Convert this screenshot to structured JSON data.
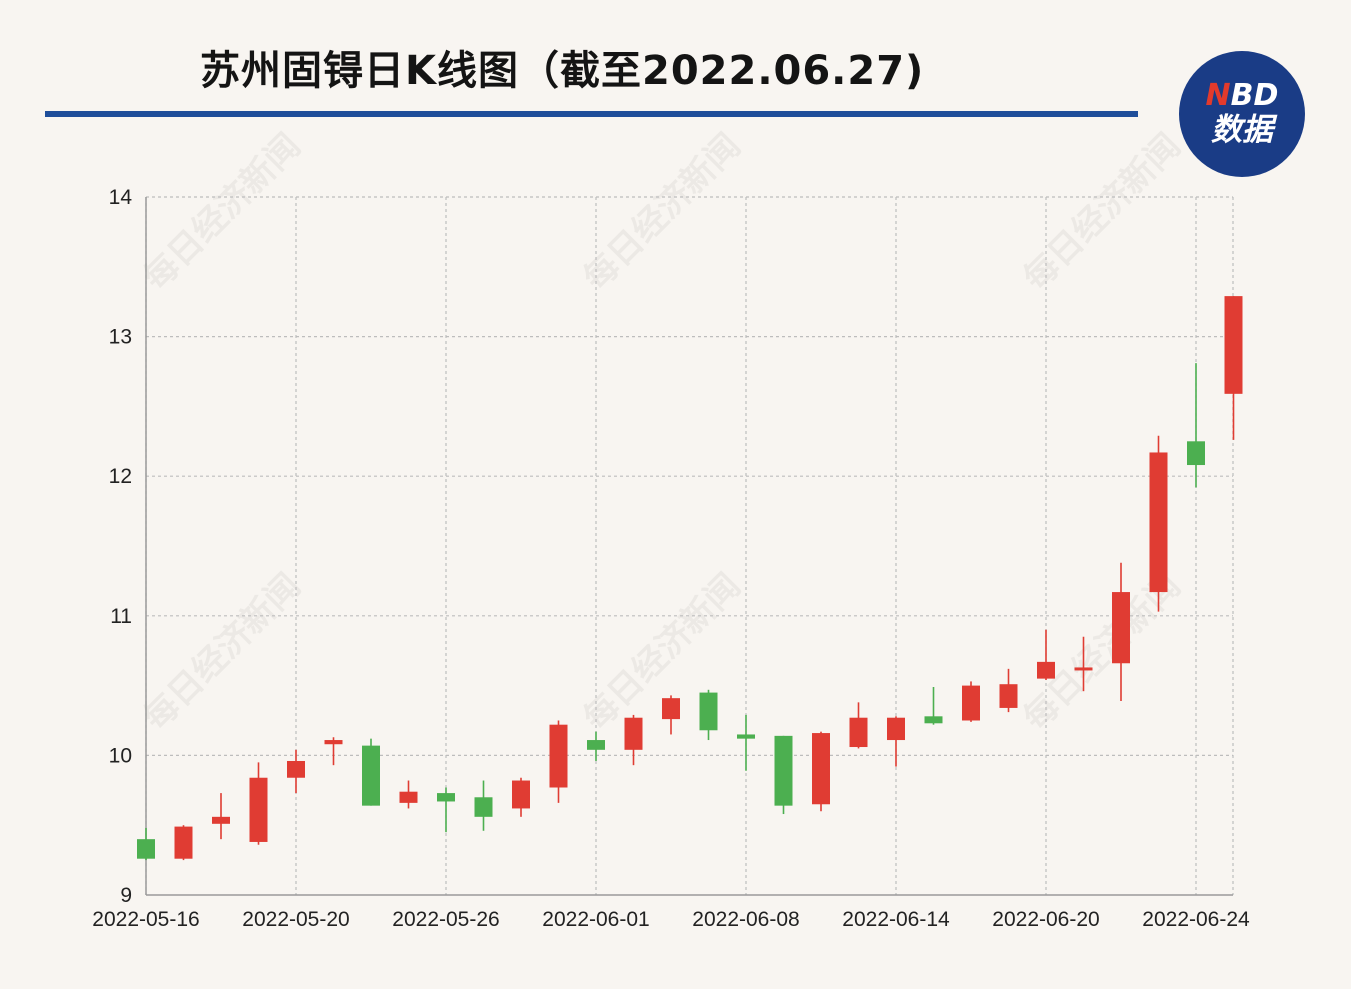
{
  "header": {
    "title": "苏州固锝日K线图（截至2022.06.27)",
    "logo_top_n": "N",
    "logo_top_rest": "BD",
    "logo_bottom": "数据",
    "watermark": "每日经济新闻"
  },
  "colors": {
    "up": "#e03c33",
    "down": "#4caf50",
    "rule": "#1f4e9a",
    "logo_bg": "#1a3c86"
  },
  "chart_data": {
    "type": "candlestick",
    "title": "苏州固锝日K线图（截至2022.06.27)",
    "ylim": [
      9,
      14
    ],
    "yticks": [
      9,
      10,
      11,
      12,
      13,
      14
    ],
    "grid": true,
    "x_tick_labels": [
      "2022-05-16",
      "2022-05-20",
      "2022-05-26",
      "2022-06-01",
      "2022-06-08",
      "2022-06-14",
      "2022-06-20",
      "2022-06-24"
    ],
    "candles": [
      {
        "open": 9.4,
        "close": 9.26,
        "high": 9.48,
        "low": 9.25
      },
      {
        "open": 9.26,
        "close": 9.49,
        "high": 9.5,
        "low": 9.25
      },
      {
        "open": 9.51,
        "close": 9.56,
        "high": 9.73,
        "low": 9.4
      },
      {
        "open": 9.38,
        "close": 9.84,
        "high": 9.95,
        "low": 9.36
      },
      {
        "open": 9.84,
        "close": 9.96,
        "high": 10.04,
        "low": 9.73
      },
      {
        "open": 10.08,
        "close": 10.11,
        "high": 10.13,
        "low": 9.93
      },
      {
        "open": 10.07,
        "close": 9.64,
        "high": 10.12,
        "low": 9.64
      },
      {
        "open": 9.66,
        "close": 9.74,
        "high": 9.82,
        "low": 9.62
      },
      {
        "open": 9.73,
        "close": 9.67,
        "high": 9.77,
        "low": 9.45
      },
      {
        "open": 9.7,
        "close": 9.56,
        "high": 9.82,
        "low": 9.46
      },
      {
        "open": 9.62,
        "close": 9.82,
        "high": 9.84,
        "low": 9.56
      },
      {
        "open": 9.77,
        "close": 10.22,
        "high": 10.25,
        "low": 9.66
      },
      {
        "open": 10.11,
        "close": 10.04,
        "high": 10.17,
        "low": 9.96
      },
      {
        "open": 10.04,
        "close": 10.27,
        "high": 10.29,
        "low": 9.93
      },
      {
        "open": 10.26,
        "close": 10.41,
        "high": 10.43,
        "low": 10.15
      },
      {
        "open": 10.45,
        "close": 10.18,
        "high": 10.47,
        "low": 10.11
      },
      {
        "open": 10.15,
        "close": 10.12,
        "high": 10.29,
        "low": 9.89
      },
      {
        "open": 10.14,
        "close": 9.64,
        "high": 10.14,
        "low": 9.58
      },
      {
        "open": 9.65,
        "close": 10.16,
        "high": 10.17,
        "low": 9.6
      },
      {
        "open": 10.06,
        "close": 10.27,
        "high": 10.38,
        "low": 10.05
      },
      {
        "open": 10.11,
        "close": 10.27,
        "high": 10.28,
        "low": 9.92
      },
      {
        "open": 10.28,
        "close": 10.23,
        "high": 10.49,
        "low": 10.22
      },
      {
        "open": 10.25,
        "close": 10.5,
        "high": 10.53,
        "low": 10.24
      },
      {
        "open": 10.34,
        "close": 10.51,
        "high": 10.62,
        "low": 10.31
      },
      {
        "open": 10.55,
        "close": 10.67,
        "high": 10.9,
        "low": 10.54
      },
      {
        "open": 10.61,
        "close": 10.63,
        "high": 10.85,
        "low": 10.46
      },
      {
        "open": 10.66,
        "close": 11.17,
        "high": 11.38,
        "low": 10.39
      },
      {
        "open": 11.17,
        "close": 12.17,
        "high": 12.29,
        "low": 11.03
      },
      {
        "open": 12.25,
        "close": 12.08,
        "high": 12.81,
        "low": 11.92
      },
      {
        "open": 12.59,
        "close": 13.29,
        "high": 13.29,
        "low": 12.26
      }
    ]
  }
}
